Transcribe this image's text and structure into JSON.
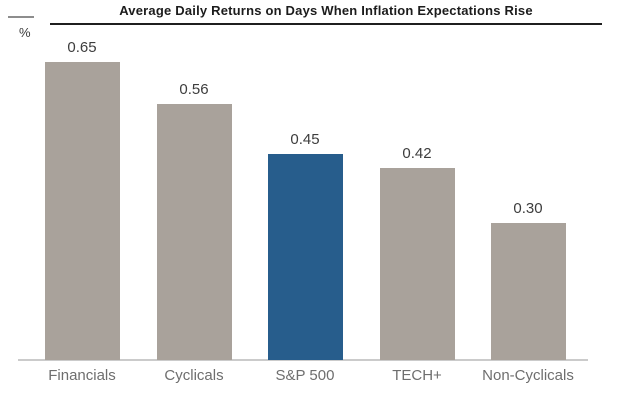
{
  "chart_data": {
    "type": "bar",
    "title": "Average Daily Returns on Days When Inflation Expectations Rise",
    "categories": [
      "Financials",
      "Cyclicals",
      "S&P 500",
      "TECH+",
      "Non-Cyclicals"
    ],
    "values": [
      0.65,
      0.56,
      0.45,
      0.42,
      0.3
    ],
    "value_labels": [
      "0.65",
      "0.56",
      "0.45",
      "0.42",
      "0.30"
    ],
    "xlabel": "",
    "ylabel": "%",
    "ylim": [
      0,
      0.78
    ],
    "grid": false,
    "legend": "none",
    "highlight_category": "S&P 500",
    "highlight_index": 2
  },
  "colors": {
    "bar_default": "#a9a29b",
    "bar_highlight": "#275d8c",
    "title_text": "#1c1c1c",
    "title_rule": "#1f1f1f",
    "header_left_rule": "#8d8d8d",
    "value_text": "#3d3d3d",
    "category_text": "#6e6e6e",
    "axis_line": "#cbcbcb",
    "background": "#ffffff"
  }
}
